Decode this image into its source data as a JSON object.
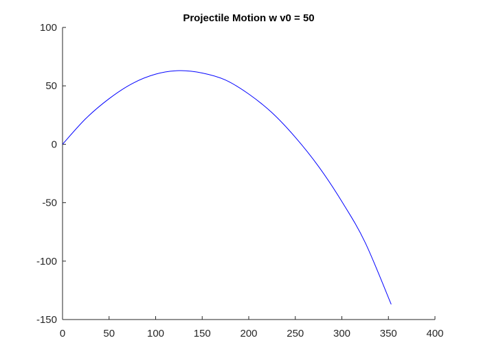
{
  "chart_data": {
    "type": "line",
    "title": "Projectile Motion w v0 = 50",
    "xlabel": "",
    "ylabel": "",
    "xlim": [
      0,
      400
    ],
    "ylim": [
      -150,
      100
    ],
    "xticks": [
      0,
      50,
      100,
      150,
      200,
      250,
      300,
      350,
      400
    ],
    "yticks": [
      -150,
      -100,
      -50,
      0,
      50,
      100
    ],
    "grid": false,
    "legend": "none",
    "series": [
      {
        "color": "#0000ff",
        "x": [
          0,
          25,
          50,
          75,
          100,
          125,
          150,
          175,
          200,
          225,
          250,
          275,
          300,
          325,
          353
        ],
        "y": [
          0,
          22,
          39,
          52,
          60,
          63,
          61,
          55,
          43,
          27,
          6,
          -19,
          -49,
          -84,
          -137
        ]
      }
    ]
  }
}
